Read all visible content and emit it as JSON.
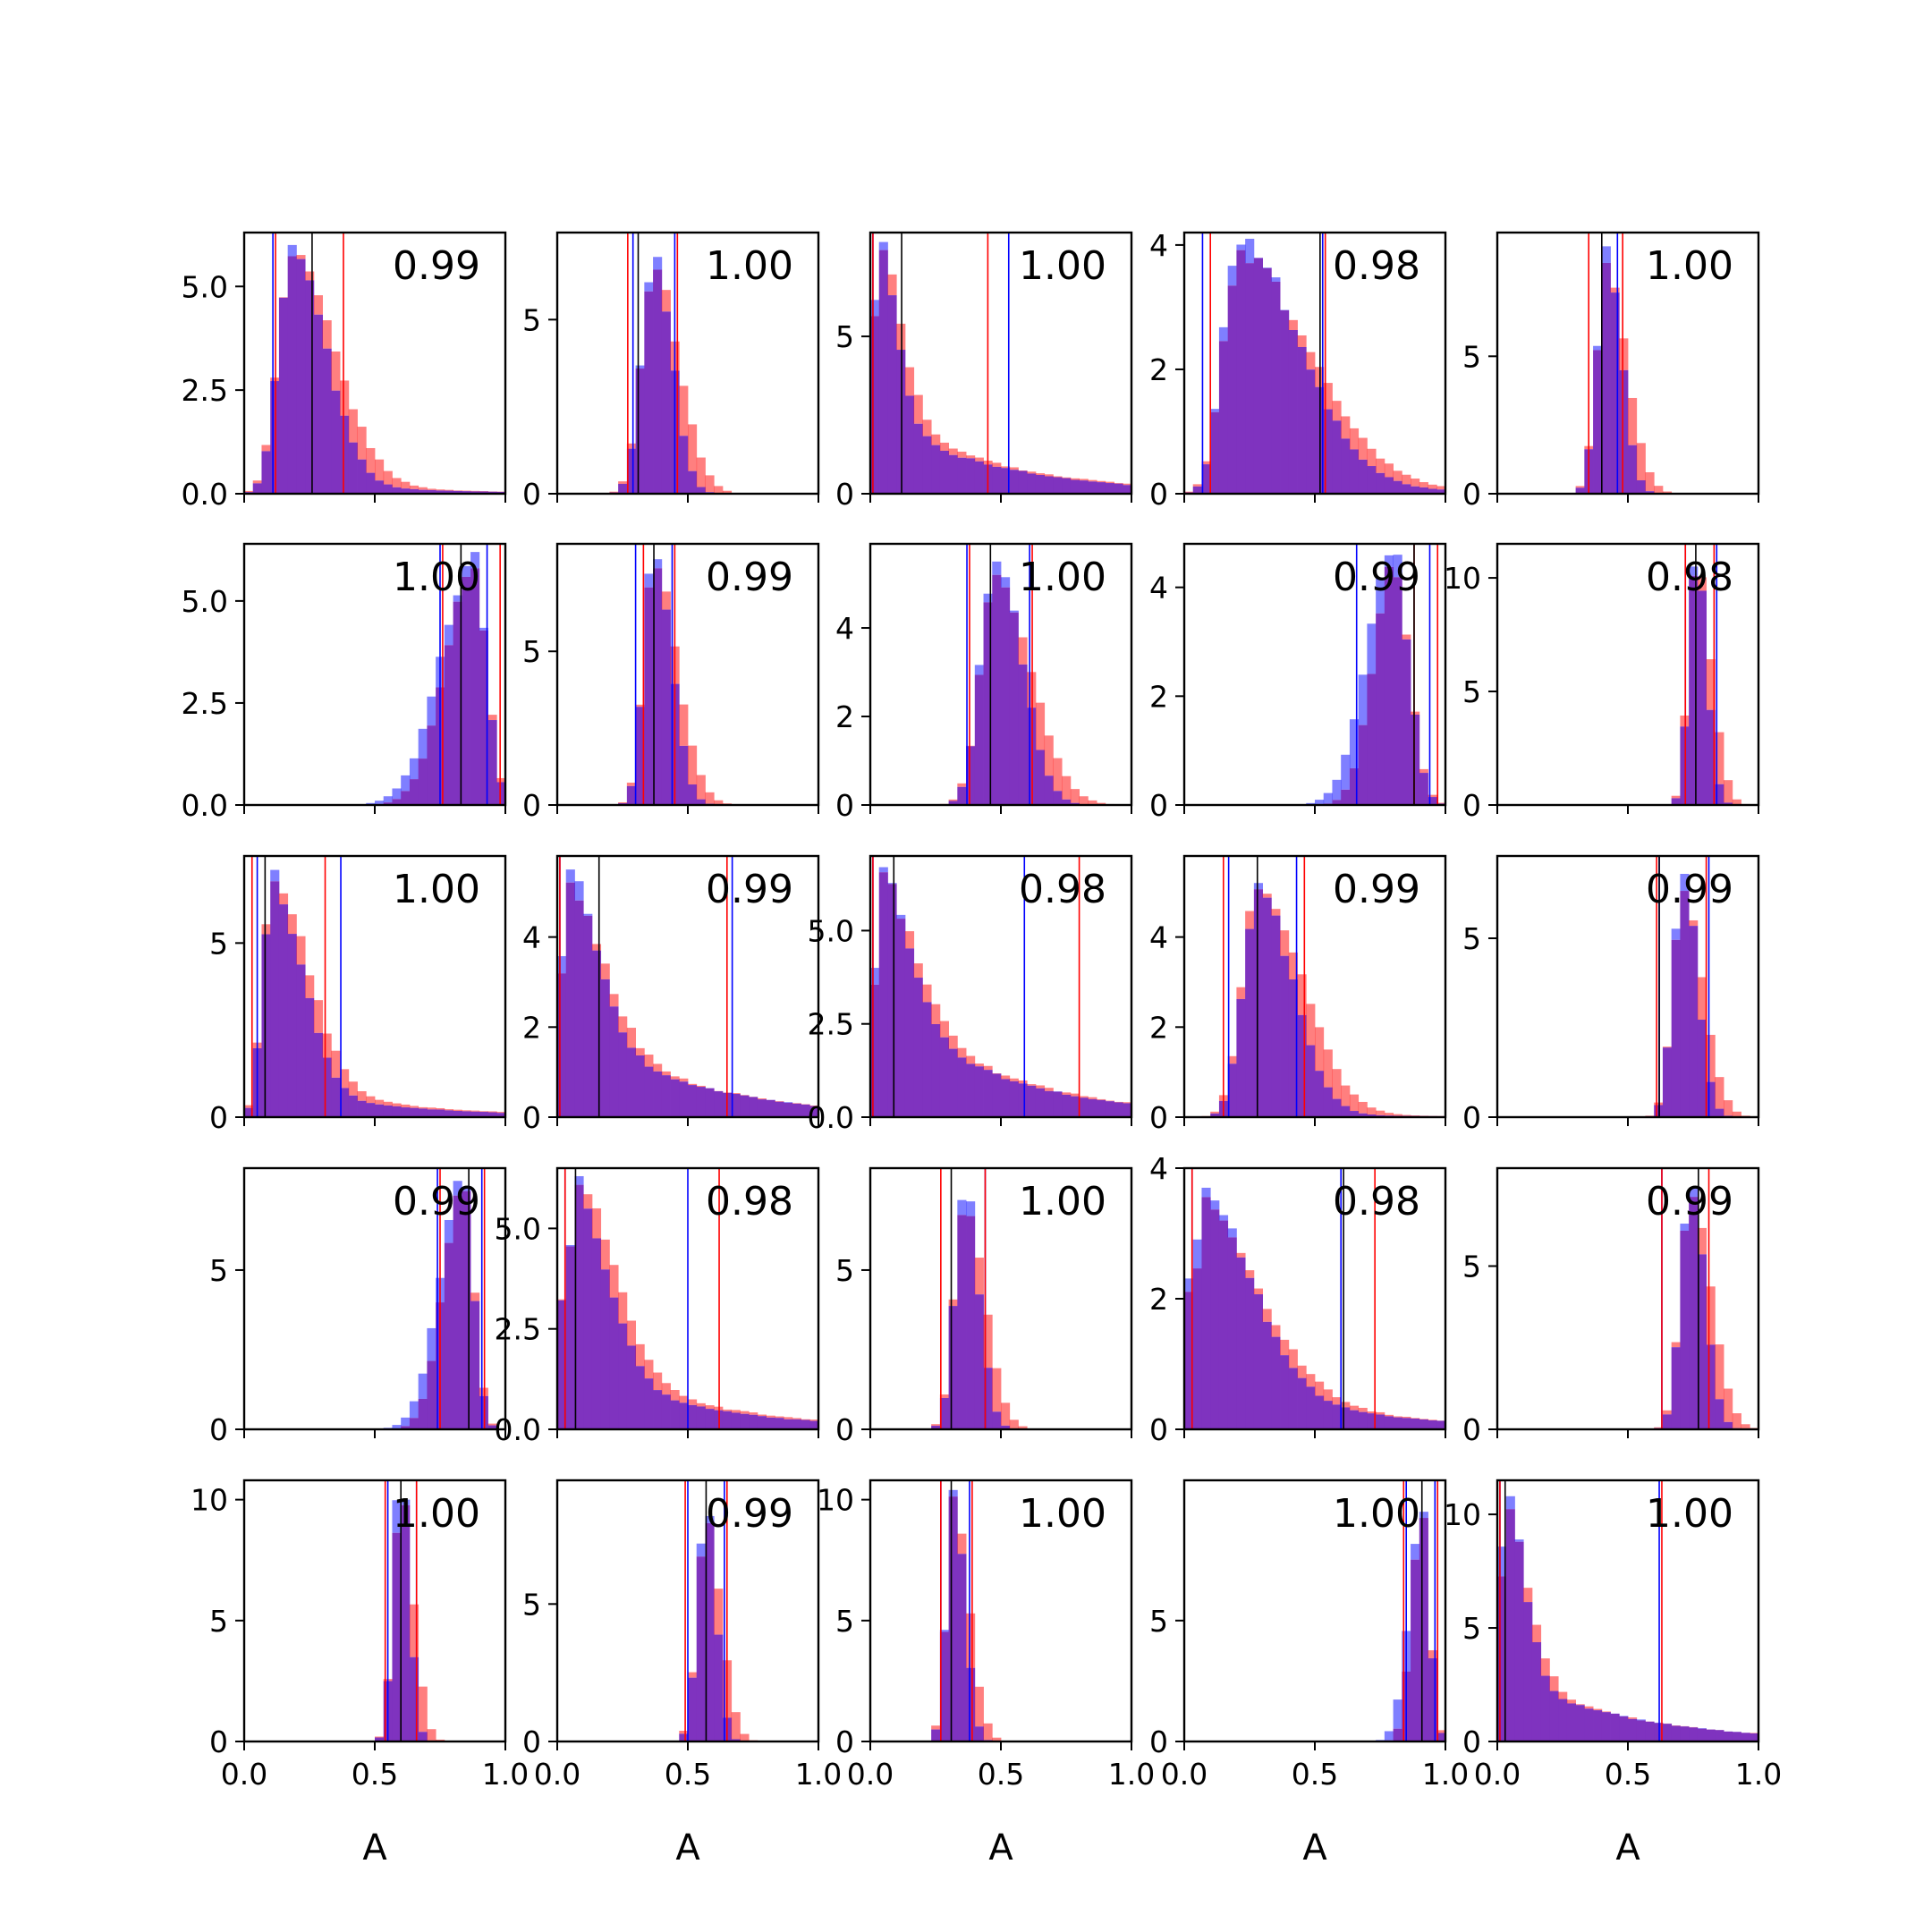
{
  "figure": {
    "colors": {
      "red": "#ff0000",
      "blue": "#0000ff",
      "overlap": "#7f33bf",
      "axis": "#000000"
    },
    "xlabel": "A",
    "xticks": [
      0.0,
      0.5,
      1.0
    ],
    "xtick_labels": [
      "0.0",
      "0.5",
      "1.0"
    ]
  },
  "chart_data": [
    {
      "type": "bar",
      "row": 0,
      "col": 0,
      "label": "0.99",
      "xlim": [
        0,
        1
      ],
      "ylim": [
        0,
        6.3
      ],
      "yticks": [
        0,
        2.5,
        5
      ],
      "ytick_labels": [
        "0.0",
        "2.5",
        "5.0"
      ],
      "peak": 0.18,
      "sd": 0.055,
      "skew": 0.28,
      "tail": 0.05,
      "top": 6.0,
      "blue_lines": [
        0.11
      ],
      "red_lines": [
        0.12,
        0.38
      ],
      "black_lines": [
        0.26
      ]
    },
    {
      "type": "bar",
      "row": 0,
      "col": 1,
      "label": "1.00",
      "xlim": [
        0,
        1
      ],
      "ylim": [
        0,
        7.5
      ],
      "yticks": [
        0,
        5
      ],
      "ytick_labels": [
        "0",
        "5"
      ],
      "peak": 0.37,
      "sd": 0.05,
      "skew": 0.1,
      "tail": 0,
      "top": 6.8,
      "blue_lines": [
        0.29,
        0.45
      ],
      "red_lines": [
        0.27,
        0.46
      ],
      "black_lines": [
        0.31
      ]
    },
    {
      "type": "bar",
      "row": 0,
      "col": 2,
      "label": "1.00",
      "xlim": [
        0,
        1
      ],
      "ylim": [
        0,
        8.3
      ],
      "yticks": [
        0,
        5
      ],
      "ytick_labels": [
        "0",
        "5"
      ],
      "peak": 0.02,
      "sd": 0.03,
      "skew": 0.3,
      "tail": 0.4,
      "top": 8.0,
      "blue_lines": [
        0.01,
        0.53
      ],
      "red_lines": [
        0.01,
        0.45
      ],
      "black_lines": [
        0.12
      ]
    },
    {
      "type": "bar",
      "row": 0,
      "col": 3,
      "label": "0.98",
      "xlim": [
        0,
        1
      ],
      "ylim": [
        0,
        4.2
      ],
      "yticks": [
        0,
        2,
        4
      ],
      "ytick_labels": [
        "0",
        "2",
        "4"
      ],
      "peak": 0.2,
      "sd": 0.06,
      "skew": 0.55,
      "tail": 0.08,
      "top": 4.1,
      "blue_lines": [
        0.07,
        0.53
      ],
      "red_lines": [
        0.1,
        0.54
      ],
      "black_lines": [
        0.52
      ]
    },
    {
      "type": "bar",
      "row": 0,
      "col": 4,
      "label": "1.00",
      "xlim": [
        0,
        1
      ],
      "ylim": [
        0,
        9.5
      ],
      "yticks": [
        0,
        5
      ],
      "ytick_labels": [
        "0",
        "5"
      ],
      "peak": 0.42,
      "sd": 0.04,
      "skew": 0.1,
      "tail": 0,
      "top": 9.0,
      "blue_lines": [
        0.46
      ],
      "red_lines": [
        0.35,
        0.48
      ],
      "black_lines": [
        0.4
      ]
    },
    {
      "type": "bar",
      "row": 1,
      "col": 0,
      "label": "1.00",
      "xlim": [
        0,
        1
      ],
      "ylim": [
        0,
        6.4
      ],
      "yticks": [
        0,
        2.5,
        5
      ],
      "ytick_labels": [
        "0.0",
        "2.5",
        "5.0"
      ],
      "peak": 0.88,
      "sd": 0.05,
      "skew": -0.25,
      "tail": 0,
      "top": 6.2,
      "blue_lines": [
        0.75,
        0.93
      ],
      "red_lines": [
        0.76,
        0.98
      ],
      "black_lines": [
        0.83
      ]
    },
    {
      "type": "bar",
      "row": 1,
      "col": 1,
      "label": "0.99",
      "xlim": [
        0,
        1
      ],
      "ylim": [
        0,
        8.5
      ],
      "yticks": [
        0,
        5
      ],
      "ytick_labels": [
        "0",
        "5"
      ],
      "peak": 0.37,
      "sd": 0.04,
      "skew": 0.15,
      "tail": 0,
      "top": 8.0,
      "blue_lines": [
        0.3,
        0.44
      ],
      "red_lines": [
        0.33,
        0.45
      ],
      "black_lines": [
        0.37
      ]
    },
    {
      "type": "bar",
      "row": 1,
      "col": 2,
      "label": "1.00",
      "xlim": [
        0,
        1
      ],
      "ylim": [
        0,
        5.9
      ],
      "yticks": [
        0,
        2,
        4
      ],
      "ytick_labels": [
        "0",
        "2",
        "4"
      ],
      "peak": 0.48,
      "sd": 0.06,
      "skew": 0.15,
      "tail": 0,
      "top": 5.5,
      "blue_lines": [
        0.37,
        0.61
      ],
      "red_lines": [
        0.38,
        0.62
      ],
      "black_lines": [
        0.46
      ]
    },
    {
      "type": "bar",
      "row": 1,
      "col": 3,
      "label": "0.99",
      "xlim": [
        0,
        1
      ],
      "ylim": [
        0,
        4.8
      ],
      "yticks": [
        0,
        2,
        4
      ],
      "ytick_labels": [
        "0",
        "2",
        "4"
      ],
      "peak": 0.8,
      "sd": 0.06,
      "skew": -0.1,
      "tail": 0,
      "top": 4.6,
      "blue_lines": [
        0.66,
        0.94
      ],
      "red_lines": [
        0.88,
        0.97
      ],
      "black_lines": [
        0.88
      ]
    },
    {
      "type": "bar",
      "row": 1,
      "col": 4,
      "label": "0.98",
      "xlim": [
        0,
        1
      ],
      "ylim": [
        0,
        11.5
      ],
      "yticks": [
        0,
        5,
        10
      ],
      "ytick_labels": [
        "0",
        "5",
        "10"
      ],
      "peak": 0.76,
      "sd": 0.03,
      "skew": 0.1,
      "tail": 0,
      "top": 10.5,
      "blue_lines": [
        0.72,
        0.84
      ],
      "red_lines": [
        0.72,
        0.83
      ],
      "black_lines": [
        0.76
      ]
    },
    {
      "type": "bar",
      "row": 2,
      "col": 0,
      "label": "1.00",
      "xlim": [
        0,
        1
      ],
      "ylim": [
        0,
        7.5
      ],
      "yticks": [
        0,
        5
      ],
      "ytick_labels": [
        "0",
        "5"
      ],
      "peak": 0.1,
      "sd": 0.035,
      "skew": 0.45,
      "tail": 0.15,
      "top": 7.1,
      "blue_lines": [
        0.05,
        0.37
      ],
      "red_lines": [
        0.03,
        0.31
      ],
      "black_lines": [
        0.08
      ]
    },
    {
      "type": "bar",
      "row": 2,
      "col": 1,
      "label": "0.99",
      "xlim": [
        0,
        1
      ],
      "ylim": [
        0,
        5.8
      ],
      "yticks": [
        0,
        2,
        4
      ],
      "ytick_labels": [
        "0",
        "2",
        "4"
      ],
      "peak": 0.02,
      "sd": 0.04,
      "skew": 0.4,
      "tail": 0.6,
      "top": 5.5,
      "blue_lines": [
        0.01,
        0.67
      ],
      "red_lines": [
        0.01,
        0.65
      ],
      "black_lines": [
        0.16
      ]
    },
    {
      "type": "bar",
      "row": 2,
      "col": 2,
      "label": "0.98",
      "xlim": [
        0,
        1
      ],
      "ylim": [
        0,
        7.0
      ],
      "yticks": [
        0,
        2.5,
        5
      ],
      "ytick_labels": [
        "0.0",
        "2.5",
        "5.0"
      ],
      "peak": 0.02,
      "sd": 0.04,
      "skew": 0.4,
      "tail": 0.8,
      "top": 6.7,
      "blue_lines": [
        0.01,
        0.59
      ],
      "red_lines": [
        0.01,
        0.8
      ],
      "black_lines": [
        0.09
      ]
    },
    {
      "type": "bar",
      "row": 2,
      "col": 3,
      "label": "0.99",
      "xlim": [
        0,
        1
      ],
      "ylim": [
        0,
        5.8
      ],
      "yticks": [
        0,
        2,
        4
      ],
      "ytick_labels": [
        "0",
        "2",
        "4"
      ],
      "peak": 0.28,
      "sd": 0.06,
      "skew": 0.25,
      "tail": 0.02,
      "top": 5.2,
      "blue_lines": [
        0.17,
        0.43
      ],
      "red_lines": [
        0.15,
        0.46
      ],
      "black_lines": [
        0.28
      ]
    },
    {
      "type": "bar",
      "row": 2,
      "col": 4,
      "label": "0.99",
      "xlim": [
        0,
        1
      ],
      "ylim": [
        0,
        7.3
      ],
      "yticks": [
        0,
        5
      ],
      "ytick_labels": [
        "0",
        "5"
      ],
      "peak": 0.71,
      "sd": 0.04,
      "skew": 0.1,
      "tail": 0,
      "top": 6.8,
      "blue_lines": [
        0.62,
        0.81
      ],
      "red_lines": [
        0.61,
        0.8
      ],
      "black_lines": [
        0.62
      ]
    },
    {
      "type": "bar",
      "row": 3,
      "col": 0,
      "label": "0.99",
      "xlim": [
        0,
        1
      ],
      "ylim": [
        0,
        8.2
      ],
      "yticks": [
        0,
        5
      ],
      "ytick_labels": [
        "0",
        "5"
      ],
      "peak": 0.84,
      "sd": 0.04,
      "skew": -0.2,
      "tail": 0,
      "top": 7.8,
      "blue_lines": [
        0.74,
        0.91
      ],
      "red_lines": [
        0.75,
        0.92
      ],
      "black_lines": [
        0.86
      ]
    },
    {
      "type": "bar",
      "row": 3,
      "col": 1,
      "label": "0.98",
      "xlim": [
        0,
        1
      ],
      "ylim": [
        0,
        6.5
      ],
      "yticks": [
        0,
        2.5,
        5
      ],
      "ytick_labels": [
        "0.0",
        "2.5",
        "5.0"
      ],
      "peak": 0.05,
      "sd": 0.04,
      "skew": 0.45,
      "tail": 0.35,
      "top": 6.3,
      "blue_lines": [
        0.03,
        0.5
      ],
      "red_lines": [
        0.03,
        0.62
      ],
      "black_lines": [
        0.07
      ]
    },
    {
      "type": "bar",
      "row": 3,
      "col": 2,
      "label": "1.00",
      "xlim": [
        0,
        1
      ],
      "ylim": [
        0,
        8.2
      ],
      "yticks": [
        0,
        5
      ],
      "ytick_labels": [
        "0",
        "5"
      ],
      "peak": 0.36,
      "sd": 0.04,
      "skew": 0.1,
      "tail": 0,
      "top": 7.2,
      "blue_lines": [
        0.44
      ],
      "red_lines": [
        0.27,
        0.44
      ],
      "black_lines": [
        0.31
      ]
    },
    {
      "type": "bar",
      "row": 3,
      "col": 3,
      "label": "0.98",
      "xlim": [
        0,
        1
      ],
      "ylim": [
        0,
        4.0
      ],
      "yticks": [
        0,
        2,
        4
      ],
      "ytick_labels": [
        "0",
        "2",
        "4"
      ],
      "peak": 0.05,
      "sd": 0.05,
      "skew": 0.55,
      "tail": 0.35,
      "top": 3.7,
      "blue_lines": [
        0.03,
        0.6
      ],
      "red_lines": [
        0.03,
        0.73
      ],
      "black_lines": [
        0.61
      ]
    },
    {
      "type": "bar",
      "row": 3,
      "col": 4,
      "label": "0.99",
      "xlim": [
        0,
        1
      ],
      "ylim": [
        0,
        8.0
      ],
      "yticks": [
        0,
        5
      ],
      "ytick_labels": [
        "0",
        "5"
      ],
      "peak": 0.74,
      "sd": 0.04,
      "skew": 0.1,
      "tail": 0,
      "top": 7.4,
      "blue_lines": [
        0.63
      ],
      "red_lines": [
        0.63,
        0.81
      ],
      "black_lines": [
        0.77
      ]
    },
    {
      "type": "bar",
      "row": 4,
      "col": 0,
      "label": "1.00",
      "xlim": [
        0,
        1
      ],
      "ylim": [
        0,
        10.8
      ],
      "yticks": [
        0,
        5,
        10
      ],
      "ytick_labels": [
        "0",
        "5",
        "10"
      ],
      "peak": 0.6,
      "sd": 0.03,
      "skew": 0.05,
      "tail": 0,
      "top": 10.0,
      "blue_lines": [
        0.55,
        0.66
      ],
      "red_lines": [
        0.54,
        0.66
      ],
      "black_lines": [
        0.6
      ]
    },
    {
      "type": "bar",
      "row": 4,
      "col": 1,
      "label": "0.99",
      "xlim": [
        0,
        1
      ],
      "ylim": [
        0,
        9.5
      ],
      "yticks": [
        0,
        5
      ],
      "ytick_labels": [
        "0",
        "5"
      ],
      "peak": 0.57,
      "sd": 0.035,
      "skew": 0.05,
      "tail": 0,
      "top": 8.2,
      "blue_lines": [
        0.5,
        0.64
      ],
      "red_lines": [
        0.49,
        0.65
      ],
      "black_lines": [
        0.57
      ]
    },
    {
      "type": "bar",
      "row": 4,
      "col": 2,
      "label": "1.00",
      "xlim": [
        0,
        1
      ],
      "ylim": [
        0,
        10.8
      ],
      "yticks": [
        0,
        5,
        10
      ],
      "ytick_labels": [
        "0",
        "5",
        "10"
      ],
      "peak": 0.32,
      "sd": 0.03,
      "skew": 0.1,
      "tail": 0,
      "top": 10.4,
      "blue_lines": [
        0.27,
        0.38
      ],
      "red_lines": [
        0.27,
        0.39
      ],
      "black_lines": [
        0.31
      ]
    },
    {
      "type": "bar",
      "row": 4,
      "col": 3,
      "label": "1.00",
      "xlim": [
        0,
        1
      ],
      "ylim": [
        0,
        10.8
      ],
      "yticks": [
        0,
        5
      ],
      "ytick_labels": [
        "0",
        "5"
      ],
      "peak": 0.91,
      "sd": 0.03,
      "skew": -0.1,
      "tail": 0,
      "top": 9.5,
      "blue_lines": [
        0.85,
        0.96
      ],
      "red_lines": [
        0.84,
        0.97
      ],
      "black_lines": [
        0.91
      ]
    },
    {
      "type": "bar",
      "row": 4,
      "col": 4,
      "label": "1.00",
      "xlim": [
        0,
        1
      ],
      "ylim": [
        0,
        11.5
      ],
      "yticks": [
        0,
        5,
        10
      ],
      "ytick_labels": [
        "0",
        "5",
        "10"
      ],
      "peak": 0.02,
      "sd": 0.03,
      "skew": 0.3,
      "tail": 0.35,
      "top": 10.8,
      "blue_lines": [
        0.01,
        0.62
      ],
      "red_lines": [
        0.01,
        0.63
      ],
      "black_lines": [
        0.03
      ]
    }
  ]
}
